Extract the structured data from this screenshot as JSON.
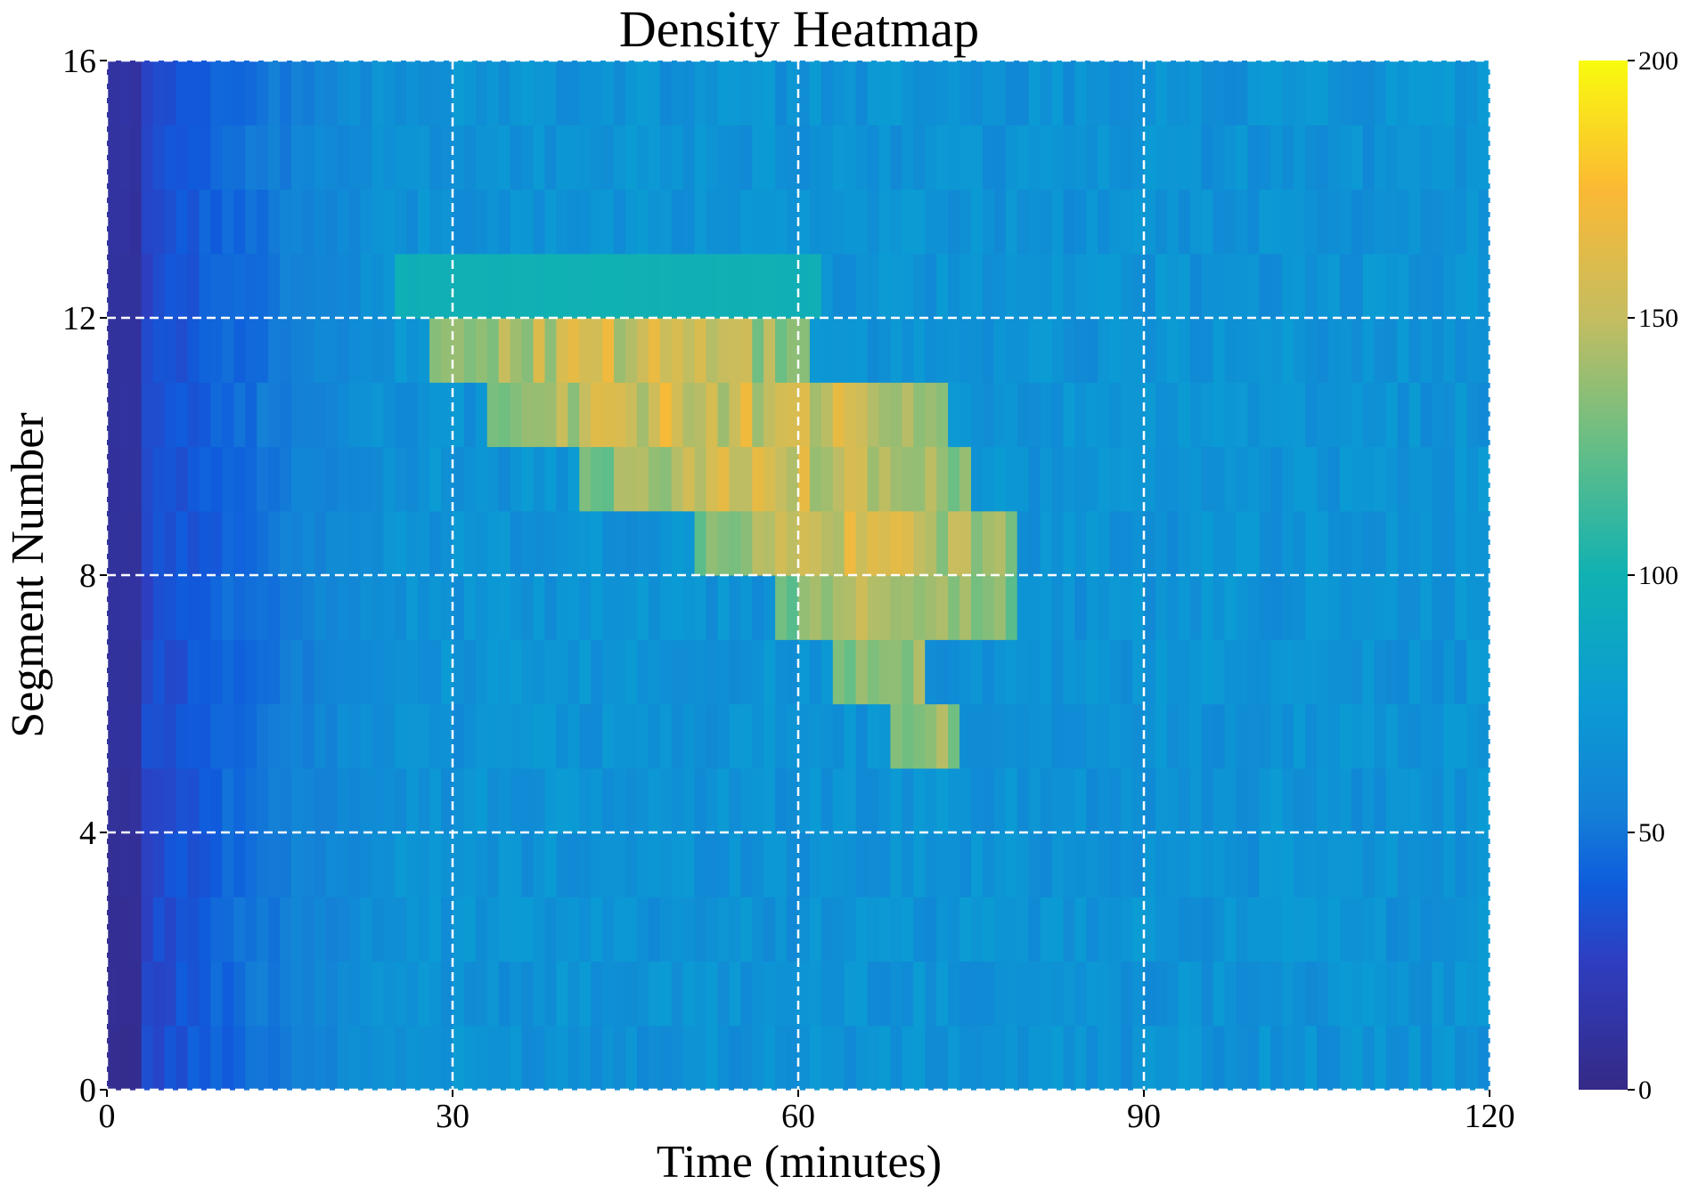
{
  "chart_data": {
    "type": "heatmap",
    "title": "Density Heatmap",
    "xlabel": "Time (minutes)",
    "ylabel": "Segment Number",
    "xlim": [
      0,
      120
    ],
    "ylim": [
      0,
      16
    ],
    "x_ticks": [
      0,
      30,
      60,
      90,
      120
    ],
    "x_tick_labels": [
      "0",
      "30",
      "60",
      "90",
      "120"
    ],
    "y_ticks": [
      0,
      4,
      8,
      12,
      16
    ],
    "y_tick_labels": [
      "0",
      "4",
      "8",
      "12",
      "16"
    ],
    "grid": true,
    "grid_style": "white dashed",
    "colorbar": {
      "range": [
        0,
        200
      ],
      "ticks": [
        0,
        50,
        100,
        150,
        200
      ],
      "tick_labels": [
        "0",
        "50",
        "100",
        "150",
        "200"
      ],
      "colormap": "parula",
      "placement": "right"
    },
    "x_bin_minutes": 1,
    "y_bin_size": 1,
    "description_of_structure": "rows = segments 0..15 (bottom to top), columns = 1-minute bins 0..119",
    "background_density": {
      "segment_start_values": [
        [
          0,
          3
        ],
        [
          1,
          4
        ],
        [
          2,
          4
        ],
        [
          3,
          5
        ],
        [
          4,
          6
        ],
        [
          5,
          8
        ],
        [
          6,
          8
        ],
        [
          7,
          9
        ],
        [
          8,
          8
        ],
        [
          9,
          9
        ],
        [
          10,
          8
        ],
        [
          11,
          8
        ],
        [
          12,
          9
        ],
        [
          13,
          9
        ],
        [
          14,
          10
        ],
        [
          15,
          10
        ]
      ],
      "free_flow_level": 68
    },
    "congestion_band": [
      {
        "segment": 11,
        "x_start": 28,
        "x_end": 61,
        "peak": 170
      },
      {
        "segment": 10,
        "x_start": 33,
        "x_end": 73,
        "peak": 175
      },
      {
        "segment": 9,
        "x_start": 41,
        "x_end": 75,
        "peak": 170
      },
      {
        "segment": 8,
        "x_start": 51,
        "x_end": 79,
        "peak": 170
      },
      {
        "segment": 7,
        "x_start": 58,
        "x_end": 79,
        "peak": 160
      },
      {
        "segment": 6,
        "x_start": 63,
        "x_end": 71,
        "peak": 160
      },
      {
        "segment": 5,
        "x_start": 68,
        "x_end": 74,
        "peak": 150
      },
      {
        "segment": 12,
        "x_start": 25,
        "x_end": 62,
        "peak": 100
      }
    ]
  }
}
